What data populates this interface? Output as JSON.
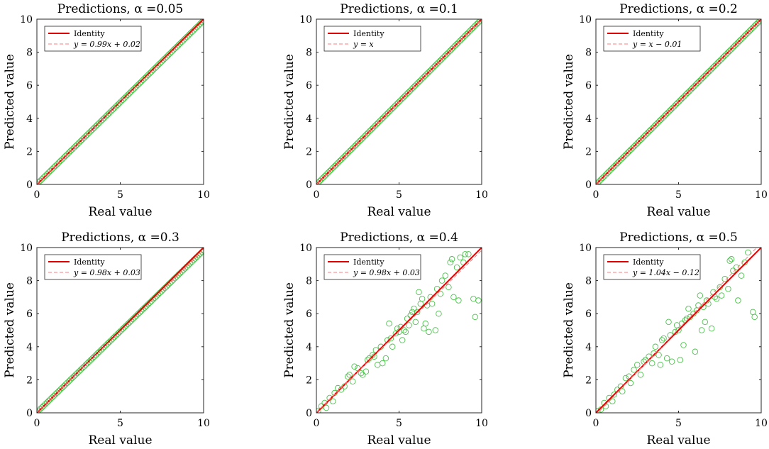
{
  "figure": {
    "title_prefix": "Predictions, ",
    "alpha_symbol": "α",
    "legend_identity": "Identity"
  },
  "chart_data": [
    {
      "type": "scatter",
      "title": "Predictions, α =0.05",
      "alpha_label": "=0.05",
      "xlabel": "Real value",
      "ylabel": "Predicted value",
      "xlim": [
        0,
        10
      ],
      "ylim": [
        0,
        10
      ],
      "xticks": [
        0,
        5,
        10
      ],
      "yticks": [
        0,
        2,
        4,
        6,
        8,
        10
      ],
      "legend": [
        "Identity",
        "y = 0.99x + 0.02"
      ],
      "fit": {
        "slope": 0.99,
        "intercept": 0.02
      },
      "series": [
        {
          "name": "Identity",
          "kind": "line",
          "color": "#e00000",
          "x": [
            0,
            10
          ],
          "y": [
            0,
            10
          ]
        },
        {
          "name": "y = 0.99x + 0.02",
          "kind": "dashed-line",
          "color": "#f08080",
          "slope": 0.99,
          "intercept": 0.02
        },
        {
          "name": "predictions",
          "kind": "markers",
          "color": "#4cc24c",
          "generator": "linear",
          "n": 100,
          "x0": 0,
          "x1": 10,
          "slope": 0.99,
          "intercept": 0.02
        }
      ]
    },
    {
      "type": "scatter",
      "title": "Predictions, α =0.1",
      "alpha_label": "=0.1",
      "xlabel": "Real value",
      "ylabel": "Predicted value",
      "xlim": [
        0,
        10
      ],
      "ylim": [
        0,
        10
      ],
      "xticks": [
        0,
        5,
        10
      ],
      "yticks": [
        0,
        2,
        4,
        6,
        8,
        10
      ],
      "legend": [
        "Identity",
        "y = x"
      ],
      "fit": {
        "slope": 1.0,
        "intercept": 0.0
      },
      "series": [
        {
          "name": "Identity",
          "kind": "line",
          "color": "#e00000",
          "x": [
            0,
            10
          ],
          "y": [
            0,
            10
          ]
        },
        {
          "name": "y = x",
          "kind": "dashed-line",
          "color": "#f08080",
          "slope": 1.0,
          "intercept": 0.0
        },
        {
          "name": "predictions",
          "kind": "markers",
          "color": "#4cc24c",
          "generator": "linear",
          "n": 100,
          "x0": 0,
          "x1": 10,
          "slope": 1.0,
          "intercept": 0.0
        }
      ]
    },
    {
      "type": "scatter",
      "title": "Predictions, α =0.2",
      "alpha_label": "=0.2",
      "xlabel": "Real value",
      "ylabel": "Predicted value",
      "xlim": [
        0,
        10
      ],
      "ylim": [
        0,
        10
      ],
      "xticks": [
        0,
        5,
        10
      ],
      "yticks": [
        0,
        2,
        4,
        6,
        8,
        10
      ],
      "legend": [
        "Identity",
        "y = x − 0.01"
      ],
      "fit": {
        "slope": 1.0,
        "intercept": -0.01
      },
      "series": [
        {
          "name": "Identity",
          "kind": "line",
          "color": "#e00000",
          "x": [
            0,
            10
          ],
          "y": [
            0,
            10
          ]
        },
        {
          "name": "y = x − 0.01",
          "kind": "dashed-line",
          "color": "#f08080",
          "slope": 1.0,
          "intercept": -0.01
        },
        {
          "name": "predictions",
          "kind": "markers",
          "color": "#4cc24c",
          "generator": "linear",
          "n": 100,
          "x0": 0,
          "x1": 10,
          "slope": 1.0,
          "intercept": -0.01
        }
      ]
    },
    {
      "type": "scatter",
      "title": "Predictions, α =0.3",
      "alpha_label": "=0.3",
      "xlabel": "Real value",
      "ylabel": "Predicted value",
      "xlim": [
        0,
        10
      ],
      "ylim": [
        0,
        10
      ],
      "xticks": [
        0,
        5,
        10
      ],
      "yticks": [
        0,
        2,
        4,
        6,
        8,
        10
      ],
      "legend": [
        "Identity",
        "y = 0.98x + 0.03"
      ],
      "fit": {
        "slope": 0.98,
        "intercept": 0.03
      },
      "series": [
        {
          "name": "Identity",
          "kind": "line",
          "color": "#e00000",
          "x": [
            0,
            10
          ],
          "y": [
            0,
            10
          ]
        },
        {
          "name": "y = 0.98x + 0.03",
          "kind": "dashed-line",
          "color": "#f08080",
          "slope": 0.98,
          "intercept": 0.03
        },
        {
          "name": "predictions",
          "kind": "markers",
          "color": "#4cc24c",
          "generator": "linear",
          "n": 100,
          "x0": 0,
          "x1": 10,
          "slope": 0.98,
          "intercept": 0.03
        }
      ]
    },
    {
      "type": "scatter",
      "title": "Predictions, α =0.4",
      "alpha_label": "=0.4",
      "xlabel": "Real value",
      "ylabel": "Predicted value",
      "xlim": [
        0,
        10
      ],
      "ylim": [
        0,
        10
      ],
      "xticks": [
        0,
        5,
        10
      ],
      "yticks": [
        0,
        2,
        4,
        6,
        8,
        10
      ],
      "legend": [
        "Identity",
        "y = 0.98x + 0.03"
      ],
      "fit": {
        "slope": 0.98,
        "intercept": 0.03
      },
      "series": [
        {
          "name": "Identity",
          "kind": "line",
          "color": "#e00000",
          "x": [
            0,
            10
          ],
          "y": [
            0,
            10
          ]
        },
        {
          "name": "y = 0.98x + 0.03",
          "kind": "dashed-line",
          "color": "#f08080",
          "slope": 0.98,
          "intercept": 0.03
        },
        {
          "name": "predictions",
          "kind": "markers",
          "color": "#4cc24c",
          "points": [
            [
              0.1,
              0.1
            ],
            [
              0.3,
              0.4
            ],
            [
              0.5,
              0.6
            ],
            [
              0.6,
              0.3
            ],
            [
              0.8,
              0.9
            ],
            [
              1.0,
              0.7
            ],
            [
              1.1,
              1.2
            ],
            [
              1.3,
              1.5
            ],
            [
              1.5,
              1.4
            ],
            [
              1.7,
              1.6
            ],
            [
              1.9,
              2.2
            ],
            [
              2.0,
              2.3
            ],
            [
              2.2,
              1.9
            ],
            [
              2.3,
              2.8
            ],
            [
              2.5,
              2.7
            ],
            [
              2.7,
              2.4
            ],
            [
              2.8,
              2.3
            ],
            [
              3.0,
              2.5
            ],
            [
              3.1,
              3.2
            ],
            [
              3.2,
              3.3
            ],
            [
              3.4,
              3.5
            ],
            [
              3.5,
              3.4
            ],
            [
              3.6,
              3.8
            ],
            [
              3.7,
              2.9
            ],
            [
              3.9,
              4.0
            ],
            [
              4.0,
              3.0
            ],
            [
              4.2,
              3.3
            ],
            [
              4.3,
              4.4
            ],
            [
              4.4,
              5.4
            ],
            [
              4.5,
              4.5
            ],
            [
              4.6,
              4.0
            ],
            [
              4.8,
              4.8
            ],
            [
              4.9,
              5.1
            ],
            [
              5.0,
              4.9
            ],
            [
              5.1,
              5.2
            ],
            [
              5.2,
              4.4
            ],
            [
              5.3,
              5.0
            ],
            [
              5.4,
              4.9
            ],
            [
              5.5,
              5.7
            ],
            [
              5.6,
              5.3
            ],
            [
              5.7,
              5.9
            ],
            [
              5.8,
              6.1
            ],
            [
              5.9,
              6.3
            ],
            [
              6.0,
              5.5
            ],
            [
              6.1,
              6.1
            ],
            [
              6.2,
              7.3
            ],
            [
              6.3,
              6.6
            ],
            [
              6.4,
              6.9
            ],
            [
              6.5,
              5.1
            ],
            [
              6.6,
              5.4
            ],
            [
              6.7,
              6.5
            ],
            [
              6.8,
              4.9
            ],
            [
              6.9,
              7.0
            ],
            [
              7.0,
              6.6
            ],
            [
              7.2,
              5.0
            ],
            [
              7.3,
              7.5
            ],
            [
              7.4,
              6.0
            ],
            [
              7.5,
              7.2
            ],
            [
              7.6,
              8.0
            ],
            [
              7.8,
              8.3
            ],
            [
              8.0,
              7.6
            ],
            [
              8.1,
              9.1
            ],
            [
              8.2,
              9.3
            ],
            [
              8.3,
              7.0
            ],
            [
              8.5,
              8.8
            ],
            [
              8.6,
              6.8
            ],
            [
              8.7,
              9.4
            ],
            [
              8.9,
              9.1
            ],
            [
              9.0,
              9.6
            ],
            [
              9.2,
              9.6
            ],
            [
              9.5,
              6.9
            ],
            [
              9.6,
              5.8
            ],
            [
              9.8,
              6.8
            ]
          ]
        }
      ]
    },
    {
      "type": "scatter",
      "title": "Predictions, α =0.5",
      "alpha_label": "=0.5",
      "xlabel": "Real value",
      "ylabel": "Predicted value",
      "xlim": [
        0,
        10
      ],
      "ylim": [
        0,
        10
      ],
      "xticks": [
        0,
        5,
        10
      ],
      "yticks": [
        0,
        2,
        4,
        6,
        8,
        10
      ],
      "legend": [
        "Identity",
        "y = 1.04x − 0.12"
      ],
      "fit": {
        "slope": 1.04,
        "intercept": -0.12
      },
      "series": [
        {
          "name": "Identity",
          "kind": "line",
          "color": "#e00000",
          "x": [
            0,
            10
          ],
          "y": [
            0,
            10
          ]
        },
        {
          "name": "y = 1.04x − 0.12",
          "kind": "dashed-line",
          "color": "#f08080",
          "slope": 1.04,
          "intercept": -0.12
        },
        {
          "name": "predictions",
          "kind": "markers",
          "color": "#4cc24c",
          "points": [
            [
              0.1,
              0.1
            ],
            [
              0.3,
              0.2
            ],
            [
              0.5,
              0.6
            ],
            [
              0.6,
              0.4
            ],
            [
              0.8,
              0.9
            ],
            [
              1.0,
              0.7
            ],
            [
              1.1,
              1.1
            ],
            [
              1.3,
              1.4
            ],
            [
              1.5,
              1.6
            ],
            [
              1.6,
              1.3
            ],
            [
              1.8,
              2.1
            ],
            [
              2.0,
              2.2
            ],
            [
              2.1,
              1.8
            ],
            [
              2.3,
              2.6
            ],
            [
              2.5,
              2.9
            ],
            [
              2.7,
              2.3
            ],
            [
              2.9,
              3.1
            ],
            [
              3.0,
              3.2
            ],
            [
              3.2,
              3.4
            ],
            [
              3.4,
              3.0
            ],
            [
              3.5,
              3.6
            ],
            [
              3.6,
              4.0
            ],
            [
              3.8,
              3.5
            ],
            [
              3.9,
              2.9
            ],
            [
              4.0,
              4.4
            ],
            [
              4.1,
              4.5
            ],
            [
              4.3,
              3.3
            ],
            [
              4.4,
              5.5
            ],
            [
              4.5,
              4.7
            ],
            [
              4.6,
              3.1
            ],
            [
              4.8,
              4.9
            ],
            [
              4.9,
              5.3
            ],
            [
              5.0,
              5.0
            ],
            [
              5.1,
              3.2
            ],
            [
              5.2,
              5.4
            ],
            [
              5.3,
              4.1
            ],
            [
              5.4,
              5.6
            ],
            [
              5.5,
              5.7
            ],
            [
              5.6,
              6.3
            ],
            [
              5.7,
              5.8
            ],
            [
              5.9,
              6.0
            ],
            [
              6.0,
              3.7
            ],
            [
              6.1,
              6.2
            ],
            [
              6.2,
              6.5
            ],
            [
              6.3,
              7.1
            ],
            [
              6.4,
              5.0
            ],
            [
              6.5,
              6.4
            ],
            [
              6.6,
              5.5
            ],
            [
              6.7,
              6.8
            ],
            [
              6.8,
              6.6
            ],
            [
              7.0,
              5.1
            ],
            [
              7.1,
              7.3
            ],
            [
              7.2,
              7.0
            ],
            [
              7.3,
              6.9
            ],
            [
              7.5,
              7.6
            ],
            [
              7.6,
              7.1
            ],
            [
              7.8,
              8.1
            ],
            [
              8.0,
              7.5
            ],
            [
              8.1,
              9.2
            ],
            [
              8.2,
              9.3
            ],
            [
              8.3,
              8.6
            ],
            [
              8.5,
              8.8
            ],
            [
              8.6,
              6.8
            ],
            [
              8.8,
              8.3
            ],
            [
              9.0,
              9.1
            ],
            [
              9.2,
              9.7
            ],
            [
              9.5,
              6.1
            ],
            [
              9.6,
              5.8
            ]
          ]
        }
      ]
    }
  ]
}
